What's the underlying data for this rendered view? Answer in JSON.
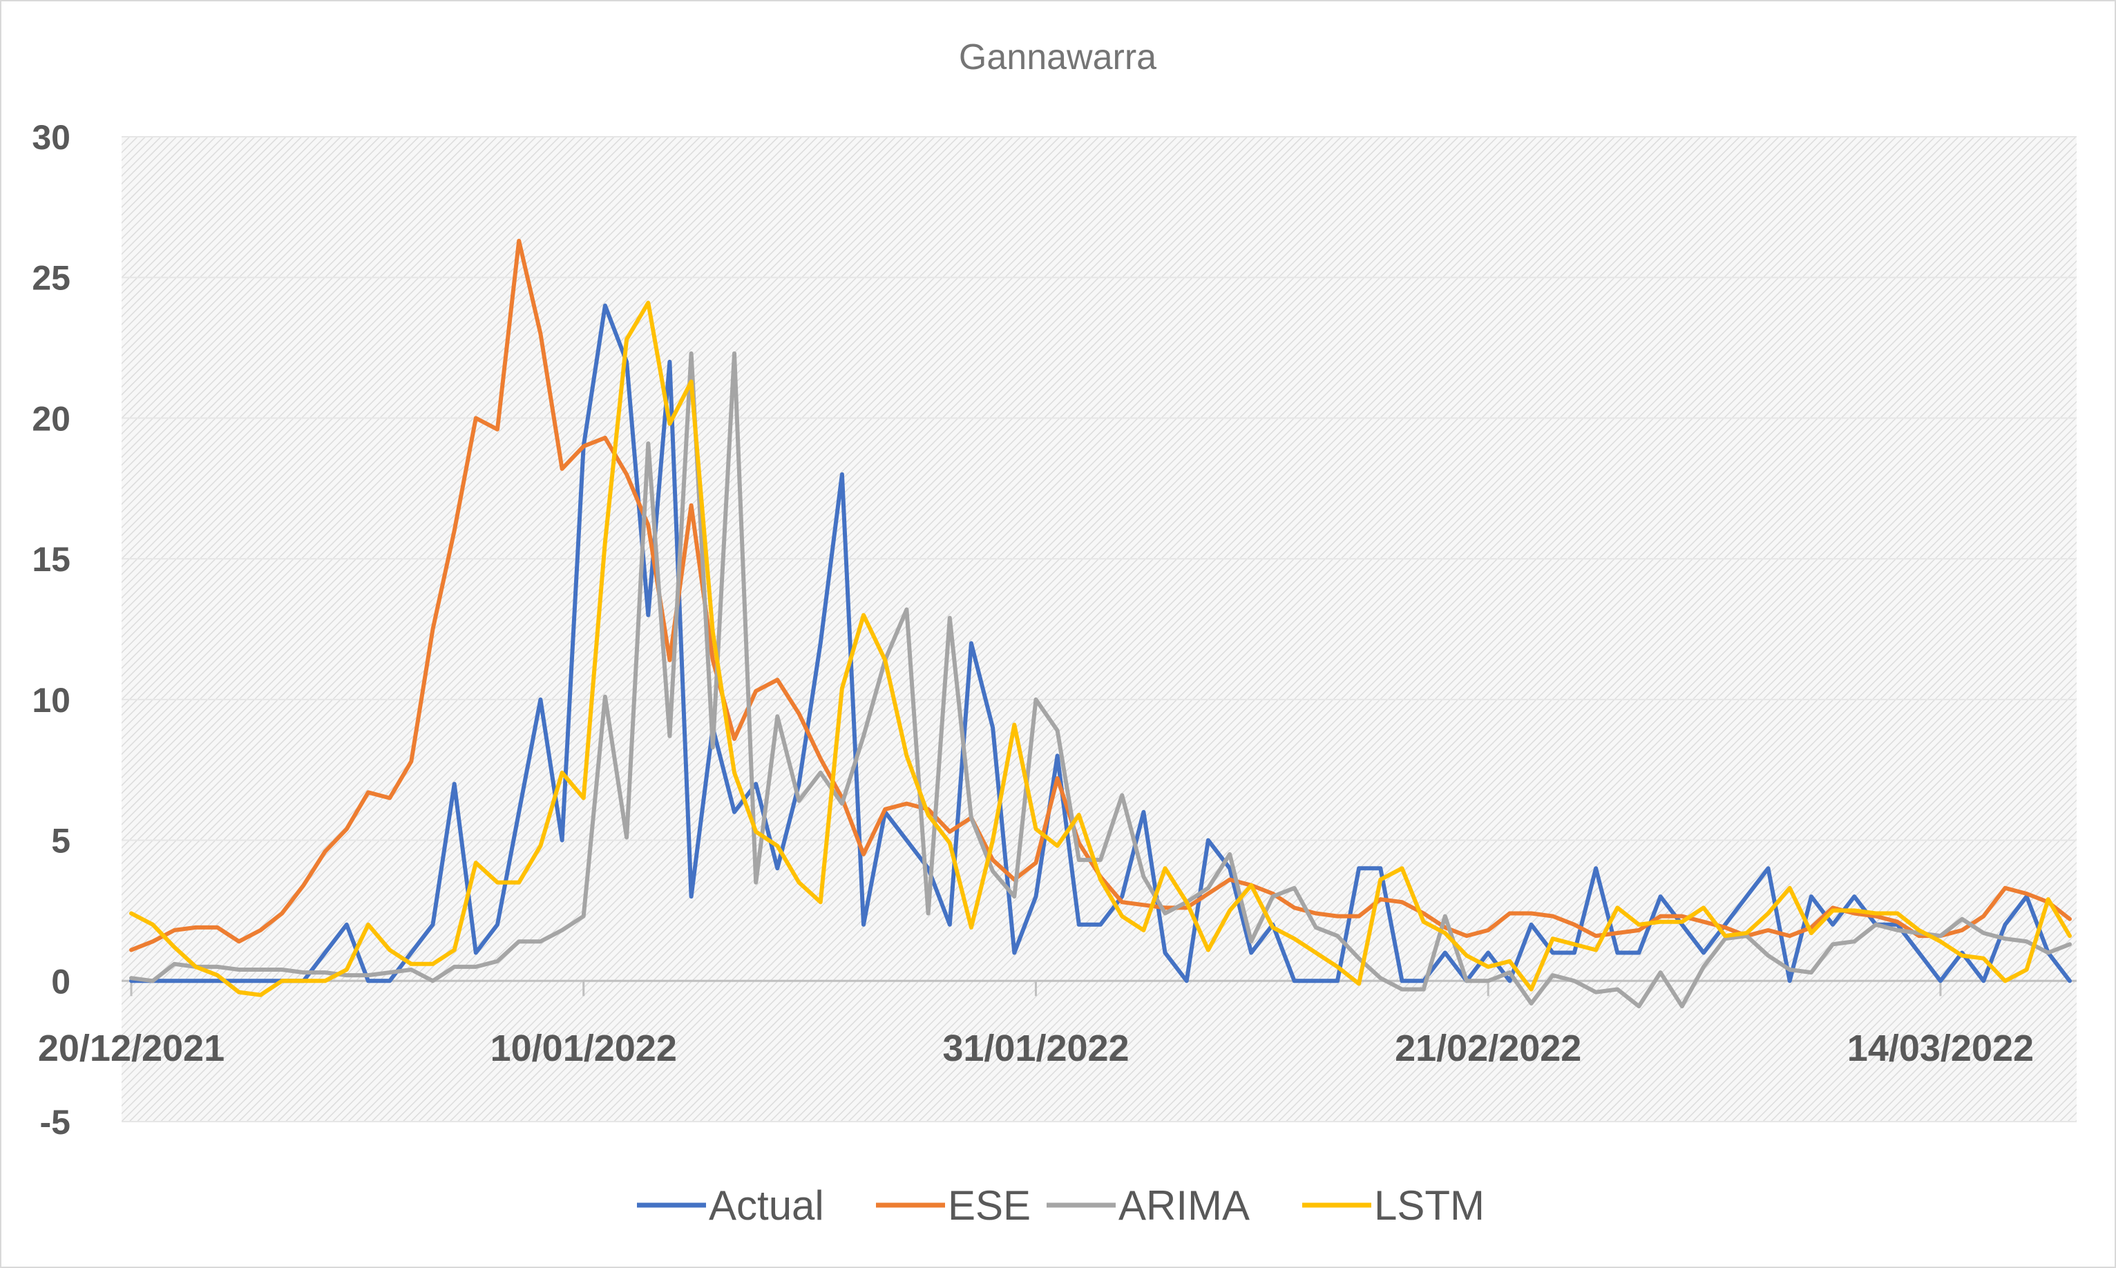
{
  "chart_data": {
    "type": "line",
    "title": "Gannawarra",
    "xlabel": "",
    "ylabel": "",
    "ylim": [
      -5,
      30
    ],
    "yticks": [
      -5,
      0,
      5,
      10,
      15,
      20,
      25,
      30
    ],
    "ytick_labels": [
      "-5",
      "0",
      "5",
      "10",
      "15",
      "20",
      "25",
      "30"
    ],
    "xtick_labels": [
      "20/12/2021",
      "10/01/2022",
      "31/01/2022",
      "21/02/2022",
      "14/03/2022"
    ],
    "xtick_positions": [
      0,
      21,
      42,
      63,
      84
    ],
    "x_start": "20/12/2021",
    "x_end": "19/03/2022",
    "grid": true,
    "legend_position": "bottom",
    "series": [
      {
        "name": "Actual",
        "color": "#4472C4",
        "values": [
          0,
          0,
          0,
          0,
          0,
          0,
          0,
          0,
          0,
          1,
          2,
          0,
          0,
          1,
          2,
          7,
          1,
          2,
          6,
          10,
          5,
          19,
          24,
          22,
          13,
          22,
          3,
          9,
          6,
          7,
          4,
          7,
          12,
          18,
          2,
          6,
          5,
          4,
          2,
          12,
          9,
          1,
          3,
          8,
          2,
          2,
          3,
          6,
          1,
          0,
          5,
          4,
          1,
          2,
          0,
          0,
          0,
          4,
          4,
          0,
          0,
          1,
          0,
          1,
          0,
          2,
          1,
          1,
          4,
          1,
          1,
          3,
          2,
          1,
          2,
          3,
          4,
          0,
          3,
          2,
          3,
          2,
          2,
          1,
          0,
          1,
          0,
          2,
          3,
          1,
          0
        ]
      },
      {
        "name": "ESE",
        "color": "#ED7D31",
        "values": [
          1.1,
          1.4,
          1.8,
          1.9,
          1.9,
          1.4,
          1.8,
          2.4,
          3.4,
          4.6,
          5.4,
          6.7,
          6.5,
          7.8,
          12.5,
          16,
          20,
          19.6,
          26.3,
          23,
          18.2,
          19,
          19.3,
          18,
          16.2,
          11.4,
          16.9,
          11.4,
          8.6,
          10.3,
          10.7,
          9.5,
          7.9,
          6.5,
          4.5,
          6.1,
          6.3,
          6.1,
          5.3,
          5.8,
          4.3,
          3.6,
          4.2,
          7.2,
          4.9,
          3.7,
          2.8,
          2.7,
          2.6,
          2.6,
          3.1,
          3.6,
          3.4,
          3.1,
          2.6,
          2.4,
          2.3,
          2.3,
          2.9,
          2.8,
          2.4,
          1.9,
          1.6,
          1.8,
          2.4,
          2.4,
          2.3,
          2.0,
          1.6,
          1.7,
          1.8,
          2.3,
          2.3,
          2.1,
          1.9,
          1.6,
          1.8,
          1.6,
          1.9,
          2.6,
          2.4,
          2.3,
          2.1,
          1.6,
          1.6,
          1.8,
          2.3,
          3.3,
          3.1,
          2.8,
          2.2
        ]
      },
      {
        "name": "ARIMA",
        "color": "#A5A5A5",
        "values": [
          0.1,
          0.0,
          0.6,
          0.5,
          0.5,
          0.4,
          0.4,
          0.4,
          0.3,
          0.3,
          0.2,
          0.2,
          0.3,
          0.4,
          0.0,
          0.5,
          0.5,
          0.7,
          1.4,
          1.4,
          1.8,
          2.3,
          10.1,
          5.1,
          19.1,
          8.7,
          22.3,
          8.3,
          22.3,
          3.5,
          9.4,
          6.4,
          7.4,
          6.3,
          8.7,
          11.4,
          13.2,
          2.4,
          12.9,
          5.8,
          3.9,
          3.0,
          10.0,
          8.9,
          4.3,
          4.3,
          6.6,
          3.7,
          2.4,
          2.8,
          3.3,
          4.5,
          1.4,
          3.0,
          3.3,
          1.9,
          1.6,
          0.8,
          0.1,
          -0.3,
          -0.3,
          2.3,
          0.0,
          0.0,
          0.3,
          -0.8,
          0.2,
          0.0,
          -0.4,
          -0.3,
          -0.9,
          0.3,
          -0.9,
          0.5,
          1.5,
          1.6,
          0.9,
          0.4,
          0.3,
          1.3,
          1.4,
          2.0,
          1.8,
          1.7,
          1.6,
          2.2,
          1.7,
          1.5,
          1.4,
          1.0,
          1.3
        ]
      },
      {
        "name": "LSTM",
        "color": "#FFC000",
        "values": [
          2.4,
          2.0,
          1.2,
          0.5,
          0.2,
          -0.4,
          -0.5,
          0.0,
          0.0,
          0.0,
          0.4,
          2.0,
          1.1,
          0.6,
          0.6,
          1.1,
          4.2,
          3.5,
          3.5,
          4.8,
          7.4,
          6.5,
          15.6,
          22.8,
          24.1,
          19.8,
          21.3,
          12.4,
          7.4,
          5.3,
          4.8,
          3.5,
          2.8,
          10.4,
          13.0,
          11.4,
          8.0,
          5.9,
          4.9,
          1.9,
          5.0,
          9.1,
          5.4,
          4.8,
          5.9,
          3.6,
          2.3,
          1.8,
          4.0,
          2.8,
          1.1,
          2.5,
          3.4,
          1.9,
          1.5,
          1.0,
          0.5,
          -0.1,
          3.6,
          4.0,
          2.1,
          1.7,
          0.9,
          0.5,
          0.7,
          -0.3,
          1.5,
          1.3,
          1.1,
          2.6,
          2.0,
          2.1,
          2.1,
          2.6,
          1.6,
          1.7,
          2.4,
          3.3,
          1.7,
          2.5,
          2.5,
          2.4,
          2.4,
          1.8,
          1.4,
          0.9,
          0.8,
          0.0,
          0.4,
          2.9,
          1.6
        ]
      }
    ]
  }
}
